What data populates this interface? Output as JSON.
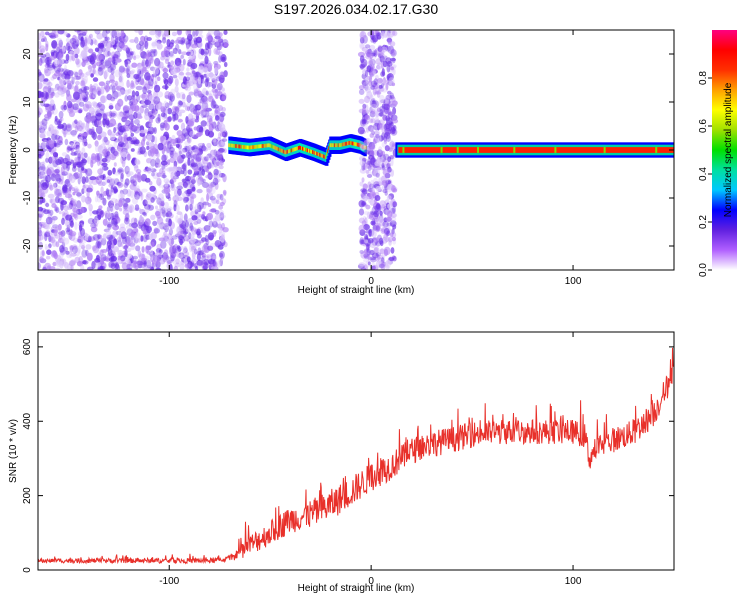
{
  "figure_title": "S197.2026.034.02.17.G30",
  "chart_data": [
    {
      "type": "heatmap",
      "xlabel": "Height of straight line (km)",
      "ylabel": "Frequency (Hz)",
      "xlim": [
        -165,
        150
      ],
      "ylim": [
        -25,
        25
      ],
      "xticks": [
        -100,
        0,
        100
      ],
      "yticks": [
        -20,
        -10,
        0,
        10,
        20
      ],
      "colorbar": {
        "label": "Normalized spectral amplitude",
        "range": [
          0,
          1
        ],
        "ticks": [
          "0.0",
          "0.2",
          "0.4",
          "0.6",
          "0.8"
        ],
        "colormap": [
          "#ffffff",
          "#b060ff",
          "#6020e0",
          "#0000ff",
          "#00c8ff",
          "#00e0a0",
          "#00e000",
          "#a0e000",
          "#ffff00",
          "#ffa000",
          "#ff3000",
          "#ff0000",
          "#ff0080"
        ]
      },
      "features": [
        {
          "region": "noise",
          "x_range": [
            -165,
            -72
          ],
          "freq_range": [
            -25,
            25
          ],
          "level": 0.15
        },
        {
          "region": "wavy_line",
          "x_range": [
            -70,
            -3
          ],
          "freq_hz": [
            [
              -70,
              1
            ],
            [
              -60,
              0.5
            ],
            [
              -50,
              1
            ],
            [
              -42,
              -0.5
            ],
            [
              -35,
              0.5
            ],
            [
              -28,
              -0.5
            ],
            [
              -22,
              -1.5
            ],
            [
              -20,
              1
            ],
            [
              -15,
              1
            ],
            [
              -10,
              1.5
            ],
            [
              -5,
              1
            ],
            [
              -3,
              0.5
            ]
          ],
          "level": 0.7
        },
        {
          "region": "noise_column",
          "x_range": [
            -5,
            12
          ],
          "freq_range": [
            -25,
            25
          ],
          "level": 0.12
        },
        {
          "region": "steady_line",
          "x_range": [
            12,
            150
          ],
          "freq_hz": 0,
          "level": 0.95
        }
      ]
    },
    {
      "type": "line",
      "xlabel": "Height of straight line (km)",
      "ylabel": "SNR (10 * v/v)",
      "xlim": [
        -165,
        150
      ],
      "ylim": [
        0,
        640
      ],
      "xticks": [
        -100,
        0,
        100
      ],
      "yticks": [
        0,
        200,
        400,
        600
      ],
      "series": [
        {
          "color": "#e8302a",
          "envelope": [
            [
              -165,
              25
            ],
            [
              -80,
              25
            ],
            [
              -70,
              30
            ],
            [
              -62,
              60
            ],
            [
              -50,
              100
            ],
            [
              -40,
              135
            ],
            [
              -30,
              150
            ],
            [
              -20,
              175
            ],
            [
              -10,
              210
            ],
            [
              0,
              250
            ],
            [
              10,
              280
            ],
            [
              20,
              320
            ],
            [
              30,
              340
            ],
            [
              40,
              350
            ],
            [
              50,
              365
            ],
            [
              60,
              370
            ],
            [
              70,
              372
            ],
            [
              80,
              372
            ],
            [
              90,
              372
            ],
            [
              100,
              372
            ],
            [
              106,
              360
            ],
            [
              108,
              300
            ],
            [
              112,
              330
            ],
            [
              120,
              350
            ],
            [
              130,
              370
            ],
            [
              140,
              420
            ],
            [
              150,
              530
            ]
          ],
          "noise_amplitude": [
            [
              -165,
              10
            ],
            [
              -70,
              12
            ],
            [
              -60,
              50
            ],
            [
              -20,
              70
            ],
            [
              20,
              60
            ],
            [
              100,
              55
            ],
            [
              150,
              60
            ]
          ]
        }
      ]
    }
  ]
}
